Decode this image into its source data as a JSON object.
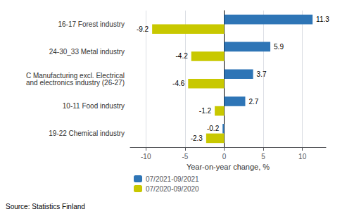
{
  "chart_data": {
    "type": "bar",
    "orientation": "horizontal",
    "categories": [
      "19-22 Chemical industry",
      "10-11 Food industry",
      "C Manufacturing excl. Electrical\nand electronics industry (26-27)",
      "24-30_33 Metal industry",
      "16-17 Forest industry"
    ],
    "series": [
      {
        "name": "07/2021-09/2021",
        "color": "#2E75B6",
        "values": [
          -0.2,
          2.7,
          3.7,
          5.9,
          11.3
        ]
      },
      {
        "name": "07/2020-09/2020",
        "color": "#C8C800",
        "values": [
          -2.3,
          -1.2,
          -4.6,
          -4.2,
          -9.2
        ]
      }
    ],
    "xlabel": "Year-on-year change, %",
    "xlim": [
      -12,
      13
    ],
    "xticks": [
      -10,
      -5,
      0,
      5,
      10
    ],
    "grid": true,
    "legend": "bottom",
    "data_labels": true,
    "annotations": [
      "Source: Statistics Finland"
    ]
  }
}
